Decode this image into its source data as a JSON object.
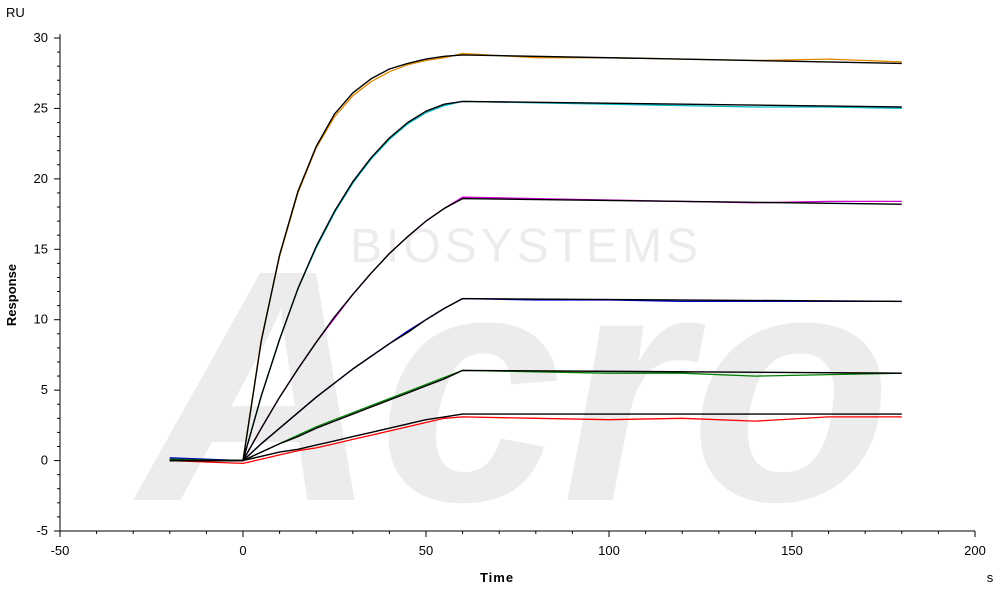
{
  "chart_data": {
    "type": "line",
    "title": "",
    "xlabel": "Time",
    "ylabel": "Response",
    "x_unit": "s",
    "y_unit": "RU",
    "xlim": [
      -50,
      200
    ],
    "ylim": [
      -5,
      30
    ],
    "x_ticks": [
      -50,
      0,
      50,
      100,
      150,
      200
    ],
    "y_ticks": [
      -5,
      0,
      5,
      10,
      15,
      20,
      25,
      30
    ],
    "grid": false,
    "watermark": "Acro BIOSYSTEMS",
    "series": [
      {
        "color": "#e08a00",
        "x": [
          -20,
          0,
          5,
          10,
          15,
          20,
          25,
          30,
          35,
          40,
          45,
          50,
          55,
          60,
          80,
          100,
          120,
          140,
          160,
          180
        ],
        "y": [
          0.1,
          0,
          8.6,
          14.5,
          19.0,
          22.2,
          24.4,
          25.9,
          26.9,
          27.6,
          28.1,
          28.4,
          28.6,
          28.9,
          28.6,
          28.6,
          28.5,
          28.4,
          28.5,
          28.3
        ]
      },
      {
        "color": "#00b8c8",
        "x": [
          -20,
          0,
          5,
          10,
          15,
          20,
          25,
          30,
          35,
          40,
          45,
          50,
          55,
          60,
          80,
          100,
          120,
          140,
          160,
          180
        ],
        "y": [
          0.1,
          0,
          4.6,
          8.6,
          12.2,
          15.1,
          17.6,
          19.7,
          21.4,
          22.8,
          23.9,
          24.7,
          25.2,
          25.5,
          25.4,
          25.3,
          25.2,
          25.1,
          25.1,
          25.0
        ]
      },
      {
        "color": "#d000d0",
        "x": [
          -20,
          0,
          5,
          10,
          15,
          20,
          25,
          30,
          35,
          40,
          45,
          50,
          55,
          60,
          80,
          100,
          120,
          140,
          160,
          180
        ],
        "y": [
          0.1,
          0,
          2.3,
          4.5,
          6.5,
          8.4,
          10.1,
          11.8,
          13.3,
          14.7,
          15.9,
          17.0,
          17.9,
          18.7,
          18.6,
          18.5,
          18.4,
          18.3,
          18.4,
          18.4
        ]
      },
      {
        "color": "#0000d0",
        "x": [
          -20,
          0,
          5,
          10,
          15,
          20,
          25,
          30,
          35,
          40,
          45,
          50,
          55,
          60,
          80,
          100,
          120,
          140,
          160,
          180
        ],
        "y": [
          0.2,
          0,
          1.2,
          2.3,
          3.4,
          4.5,
          5.5,
          6.5,
          7.4,
          8.3,
          9.2,
          10.0,
          10.8,
          11.5,
          11.4,
          11.4,
          11.3,
          11.3,
          11.3,
          11.3
        ]
      },
      {
        "color": "#008000",
        "x": [
          -20,
          0,
          5,
          10,
          15,
          20,
          25,
          30,
          35,
          40,
          45,
          50,
          55,
          60,
          80,
          100,
          120,
          140,
          160,
          180
        ],
        "y": [
          0.1,
          0,
          0.6,
          1.2,
          1.8,
          2.4,
          2.9,
          3.4,
          3.9,
          4.4,
          4.9,
          5.4,
          5.9,
          6.4,
          6.3,
          6.2,
          6.2,
          6.0,
          6.1,
          6.2
        ]
      },
      {
        "color": "#ff0000",
        "x": [
          -20,
          0,
          5,
          10,
          15,
          20,
          25,
          30,
          35,
          40,
          45,
          50,
          55,
          60,
          80,
          100,
          120,
          140,
          160,
          180
        ],
        "y": [
          0.0,
          -0.2,
          0.1,
          0.4,
          0.7,
          0.9,
          1.2,
          1.5,
          1.8,
          2.1,
          2.4,
          2.7,
          3.0,
          3.1,
          3.0,
          2.9,
          3.0,
          2.8,
          3.1,
          3.1
        ]
      }
    ],
    "fits": [
      {
        "color": "#000000",
        "x": [
          -20,
          0,
          5,
          10,
          15,
          20,
          25,
          30,
          35,
          40,
          45,
          50,
          55,
          60,
          180
        ],
        "y": [
          0.0,
          0,
          8.5,
          14.6,
          19.1,
          22.3,
          24.6,
          26.1,
          27.1,
          27.8,
          28.2,
          28.5,
          28.7,
          28.8,
          28.2
        ]
      },
      {
        "color": "#000000",
        "x": [
          -20,
          0,
          5,
          10,
          15,
          20,
          25,
          30,
          35,
          40,
          45,
          50,
          55,
          60,
          180
        ],
        "y": [
          0.0,
          0,
          4.6,
          8.6,
          12.2,
          15.2,
          17.7,
          19.8,
          21.5,
          22.9,
          24.0,
          24.8,
          25.3,
          25.5,
          25.1
        ]
      },
      {
        "color": "#000000",
        "x": [
          -20,
          0,
          5,
          10,
          15,
          20,
          25,
          30,
          35,
          40,
          45,
          50,
          55,
          60,
          180
        ],
        "y": [
          0.0,
          0,
          2.3,
          4.5,
          6.5,
          8.4,
          10.2,
          11.8,
          13.3,
          14.7,
          15.9,
          17.0,
          17.9,
          18.6,
          18.2
        ]
      },
      {
        "color": "#000000",
        "x": [
          -20,
          0,
          5,
          10,
          15,
          20,
          25,
          30,
          35,
          40,
          45,
          50,
          55,
          60,
          180
        ],
        "y": [
          0.0,
          0,
          1.2,
          2.3,
          3.4,
          4.5,
          5.5,
          6.5,
          7.4,
          8.3,
          9.1,
          10.0,
          10.8,
          11.5,
          11.3
        ]
      },
      {
        "color": "#000000",
        "x": [
          -20,
          0,
          5,
          10,
          15,
          20,
          25,
          30,
          35,
          40,
          45,
          50,
          55,
          60,
          180
        ],
        "y": [
          0.0,
          0,
          0.6,
          1.2,
          1.7,
          2.3,
          2.8,
          3.3,
          3.8,
          4.3,
          4.8,
          5.3,
          5.8,
          6.4,
          6.2
        ]
      },
      {
        "color": "#000000",
        "x": [
          -20,
          0,
          5,
          10,
          15,
          20,
          25,
          30,
          35,
          40,
          45,
          50,
          55,
          60,
          180
        ],
        "y": [
          0.0,
          0,
          0.3,
          0.6,
          0.8,
          1.1,
          1.4,
          1.7,
          2.0,
          2.3,
          2.6,
          2.9,
          3.1,
          3.3,
          3.3
        ]
      }
    ]
  }
}
